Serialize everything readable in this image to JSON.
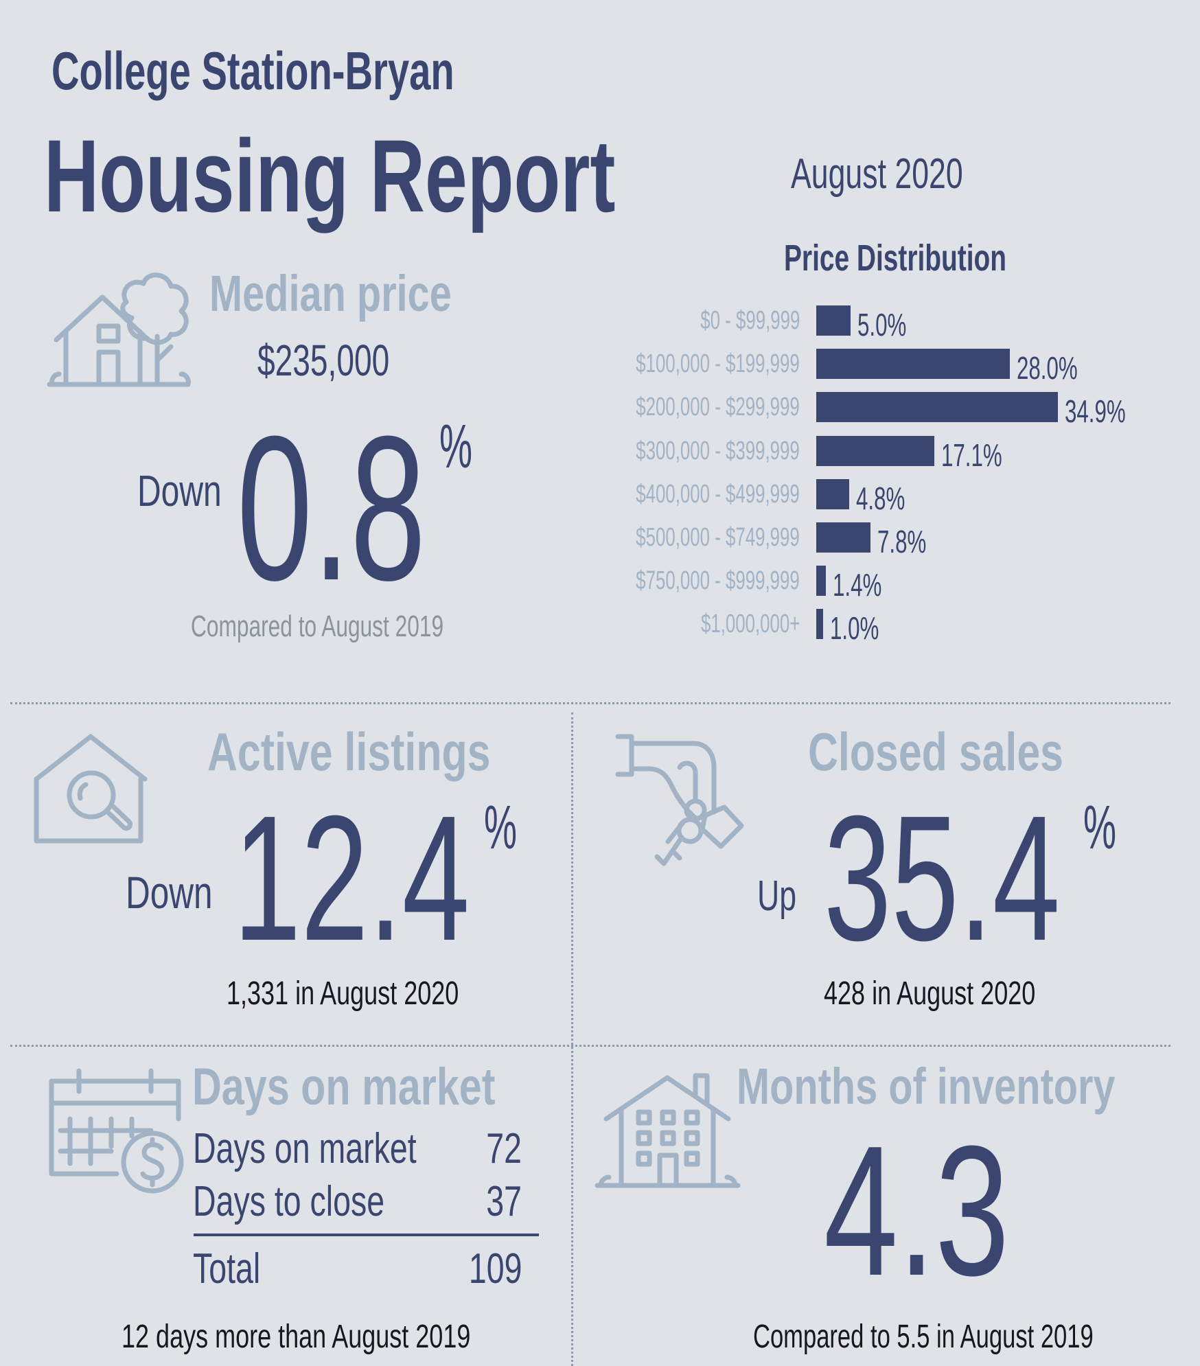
{
  "header": {
    "title_line1": "College Station-Bryan",
    "title_line2": "Housing Report",
    "period": "August 2020"
  },
  "median_price": {
    "label": "Median price",
    "price": "$235,000",
    "direction": "Down",
    "change": "0.8",
    "unit": "%",
    "note": "Compared to August 2019",
    "icon": "house-tree-icon"
  },
  "chart_data": {
    "type": "bar",
    "orientation": "horizontal",
    "title": "Price Distribution",
    "xlabel": "",
    "ylabel": "",
    "categories": [
      "$0 - $99,999",
      "$100,000 - $199,999",
      "$200,000 - $299,999",
      "$300,000 - $399,999",
      "$400,000 - $499,999",
      "$500,000 - $749,999",
      "$750,000 - $999,999",
      "$1,000,000+"
    ],
    "values": [
      5.0,
      28.0,
      34.9,
      17.1,
      4.8,
      7.8,
      1.4,
      1.0
    ],
    "value_labels": [
      "5.0%",
      "28.0%",
      "34.9%",
      "17.1%",
      "4.8%",
      "7.8%",
      "1.4%",
      "1.0%"
    ],
    "xlim": [
      0,
      34.9
    ],
    "grid": false,
    "legend": "none",
    "bar_color": "#3b4670"
  },
  "active_listings": {
    "label": "Active listings",
    "direction": "Down",
    "change": "12.4",
    "unit": "%",
    "note": "1,331 in August 2020",
    "icon": "house-search-icon"
  },
  "closed_sales": {
    "label": "Closed sales",
    "direction": "Up",
    "change": "35.4",
    "unit": "%",
    "note": "428 in August 2020",
    "icon": "hand-keys-icon"
  },
  "days_on_market": {
    "label": "Days on market",
    "rows": [
      {
        "label": "Days on market",
        "value": "72"
      },
      {
        "label": "Days to close",
        "value": "37"
      }
    ],
    "total_label": "Total",
    "total_value": "109",
    "note": "12 days more than August 2019",
    "icon": "calendar-dollar-icon"
  },
  "months_inventory": {
    "label": "Months of inventory",
    "value": "4.3",
    "note": "Compared to 5.5 in August 2019",
    "icon": "apartment-building-icon"
  },
  "colors": {
    "background": "#dfe2e7",
    "navy": "#3b4670",
    "light_blue": "#a2b3c6",
    "gray_text": "#8e939a",
    "black_text": "#151820"
  }
}
